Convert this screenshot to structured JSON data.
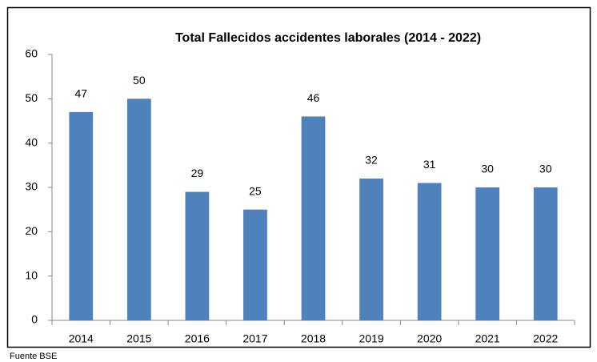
{
  "chart_data": {
    "type": "bar",
    "title": "Total Fallecidos accidentes laborales (2014 - 2022)",
    "categories": [
      "2014",
      "2015",
      "2016",
      "2017",
      "2018",
      "2019",
      "2020",
      "2021",
      "2022"
    ],
    "values": [
      47,
      50,
      29,
      25,
      46,
      32,
      31,
      30,
      30
    ],
    "color": "#4f81bd",
    "ylim": [
      0,
      60
    ],
    "yticks": [
      0,
      10,
      20,
      30,
      40,
      50,
      60
    ],
    "grid": false,
    "note": "Fuente BSE"
  }
}
